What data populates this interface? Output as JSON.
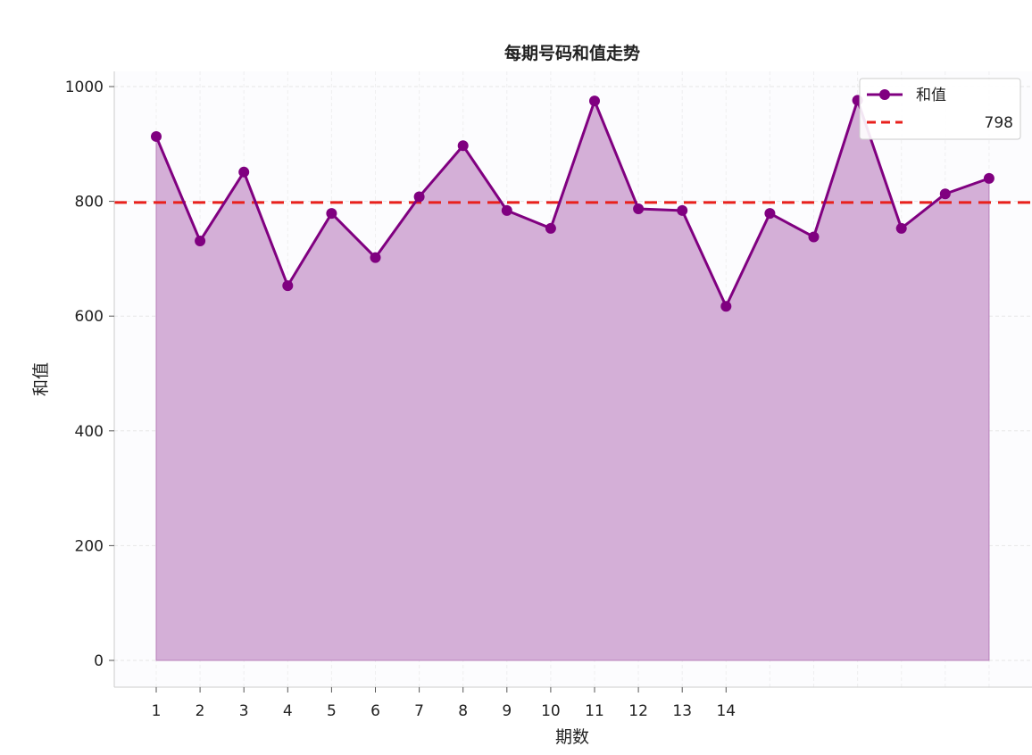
{
  "colors": {
    "line": "#800080",
    "fill": "#d4afd7",
    "fill_stroke": "#b77fba",
    "mean_line": "#e8201c",
    "axis": "#cccccc",
    "grid": "#e6e6e6",
    "plot_bg": "#fcfcfe",
    "legend_border": "#cccccc"
  },
  "chart_data": {
    "type": "area",
    "title": "每期号码和值走势",
    "xlabel": "期数",
    "ylabel": "和值",
    "categories": [
      "1",
      "2",
      "3",
      "4",
      "5",
      "6",
      "7",
      "8",
      "9",
      "10",
      "11",
      "12",
      "13",
      "14",
      "",
      "",
      "",
      "",
      "",
      ""
    ],
    "x": [
      1,
      2,
      3,
      4,
      5,
      6,
      7,
      8,
      9,
      10,
      11,
      12,
      13,
      14,
      15,
      16,
      17,
      18,
      19,
      20
    ],
    "series": [
      {
        "name": "和值",
        "values": [
          913,
          731,
          851,
          653,
          779,
          702,
          808,
          897,
          784,
          753,
          975,
          787,
          784,
          617,
          779,
          738,
          976,
          753,
          813,
          840
        ],
        "marker": "circle"
      }
    ],
    "reference_lines": [
      {
        "value": 798,
        "style": "dashed",
        "label": "798"
      }
    ],
    "ylim": [
      -48,
      1025
    ],
    "yticks": [
      0,
      200,
      400,
      600,
      800,
      1000
    ],
    "grid": true,
    "legend": {
      "position": "top-right",
      "entries": [
        "和值",
        "798"
      ]
    }
  }
}
